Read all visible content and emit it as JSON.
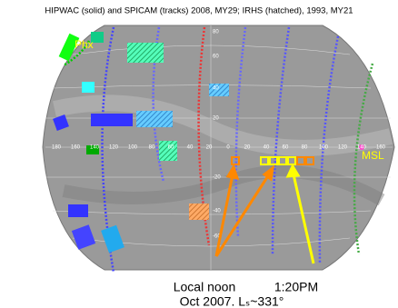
{
  "title": "HIPWAC (solid) and SPICAM (tracks) 2008, MY29; IRHS (hatched), 1993, MY21",
  "map_labels": {
    "phx": "Phx",
    "msl": "MSL"
  },
  "longitude_labels": [
    "180",
    "160",
    "140",
    "120",
    "100",
    "80",
    "60",
    "40",
    "20",
    "0",
    "20",
    "40",
    "60",
    "80",
    "100",
    "120",
    "140",
    "160"
  ],
  "latitude_labels": [
    "80",
    "60",
    "40",
    "20",
    "-20",
    "-40",
    "-60"
  ],
  "annotations": {
    "local_noon": "Local noon",
    "time": "1:20PM",
    "date": "Oct 2007. Lₛ~331°"
  }
}
